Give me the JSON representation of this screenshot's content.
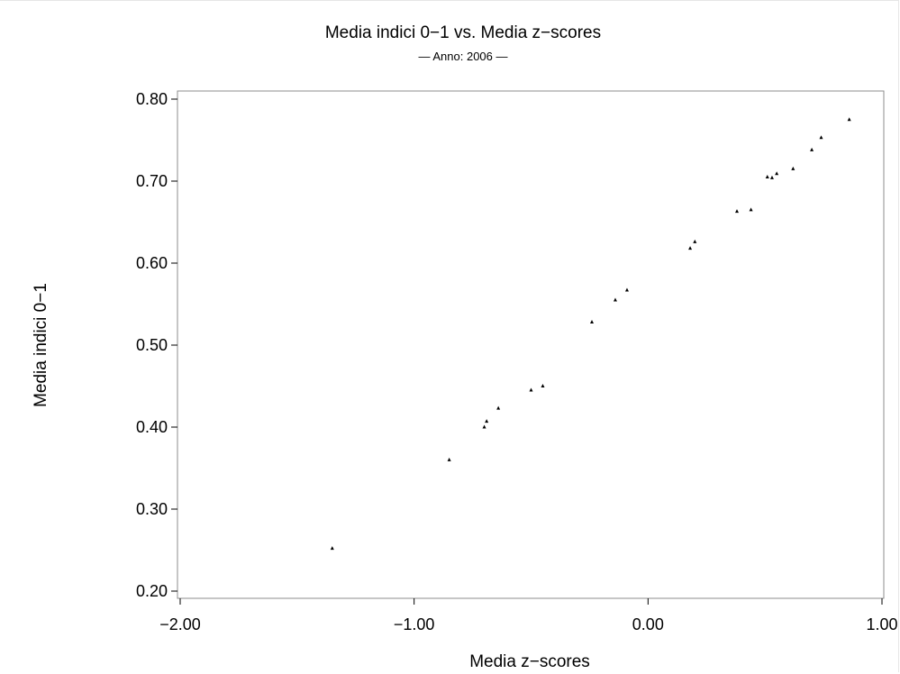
{
  "chart_data": {
    "type": "scatter",
    "title": "Media indici 0−1 vs. Media z−scores",
    "subtitle": "— Anno: 2006 —",
    "xlabel": "Media z−scores",
    "ylabel": "Media indici 0−1",
    "xlim": [
      -2.0,
      1.0
    ],
    "ylim": [
      0.2,
      0.8
    ],
    "grid": false,
    "legend": "none",
    "marker": "triangle",
    "color": "#000000",
    "xticks": [
      {
        "value": -2.0,
        "label": "−2.00"
      },
      {
        "value": -1.0,
        "label": "−1.00"
      },
      {
        "value": 0.0,
        "label": "0.00"
      },
      {
        "value": 1.0,
        "label": "1.00"
      }
    ],
    "yticks": [
      {
        "value": 0.2,
        "label": "0.20"
      },
      {
        "value": 0.3,
        "label": "0.30"
      },
      {
        "value": 0.4,
        "label": "0.40"
      },
      {
        "value": 0.5,
        "label": "0.50"
      },
      {
        "value": 0.6,
        "label": "0.60"
      },
      {
        "value": 0.7,
        "label": "0.70"
      },
      {
        "value": 0.8,
        "label": "0.80"
      }
    ],
    "points": [
      {
        "x": -1.35,
        "y": 0.252
      },
      {
        "x": -0.85,
        "y": 0.36
      },
      {
        "x": -0.7,
        "y": 0.4
      },
      {
        "x": -0.69,
        "y": 0.407
      },
      {
        "x": -0.64,
        "y": 0.423
      },
      {
        "x": -0.5,
        "y": 0.445
      },
      {
        "x": -0.45,
        "y": 0.45
      },
      {
        "x": -0.24,
        "y": 0.528
      },
      {
        "x": -0.14,
        "y": 0.555
      },
      {
        "x": -0.09,
        "y": 0.567
      },
      {
        "x": 0.18,
        "y": 0.618
      },
      {
        "x": 0.2,
        "y": 0.626
      },
      {
        "x": 0.38,
        "y": 0.663
      },
      {
        "x": 0.44,
        "y": 0.665
      },
      {
        "x": 0.51,
        "y": 0.705
      },
      {
        "x": 0.53,
        "y": 0.704
      },
      {
        "x": 0.55,
        "y": 0.709
      },
      {
        "x": 0.62,
        "y": 0.715
      },
      {
        "x": 0.7,
        "y": 0.738
      },
      {
        "x": 0.74,
        "y": 0.753
      },
      {
        "x": 0.86,
        "y": 0.775
      }
    ]
  }
}
